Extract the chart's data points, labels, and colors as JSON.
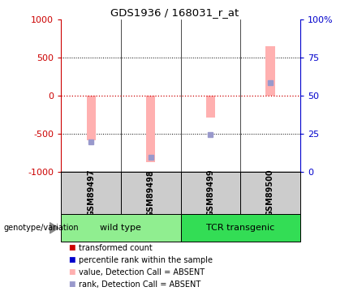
{
  "title": "GDS1936 / 168031_r_at",
  "samples": [
    "GSM89497",
    "GSM89498",
    "GSM89499",
    "GSM89500"
  ],
  "bar_values": [
    -580,
    -870,
    -290,
    650
  ],
  "rank_values": [
    -610,
    -810,
    -510,
    175
  ],
  "ylim": [
    -1000,
    1000
  ],
  "yticks_left": [
    -1000,
    -500,
    0,
    500,
    1000
  ],
  "ytick_labels_left": [
    "-1000",
    "-500",
    "0",
    "500",
    "1000"
  ],
  "ytick_labels_right": [
    "0",
    "25",
    "50",
    "75",
    "100%"
  ],
  "bar_color": "#ffb0b0",
  "rank_color": "#9999cc",
  "hline_color": "#cc0000",
  "left_axis_color": "#cc0000",
  "right_axis_color": "#0000cc",
  "group_wt_color": "#90ee90",
  "group_tcr_color": "#33dd55",
  "sample_box_color": "#cccccc",
  "legend_items": [
    {
      "label": "transformed count",
      "color": "#cc0000"
    },
    {
      "label": "percentile rank within the sample",
      "color": "#0000cc"
    },
    {
      "label": "value, Detection Call = ABSENT",
      "color": "#ffb0b0"
    },
    {
      "label": "rank, Detection Call = ABSENT",
      "color": "#9999cc"
    }
  ],
  "bar_width": 0.15
}
